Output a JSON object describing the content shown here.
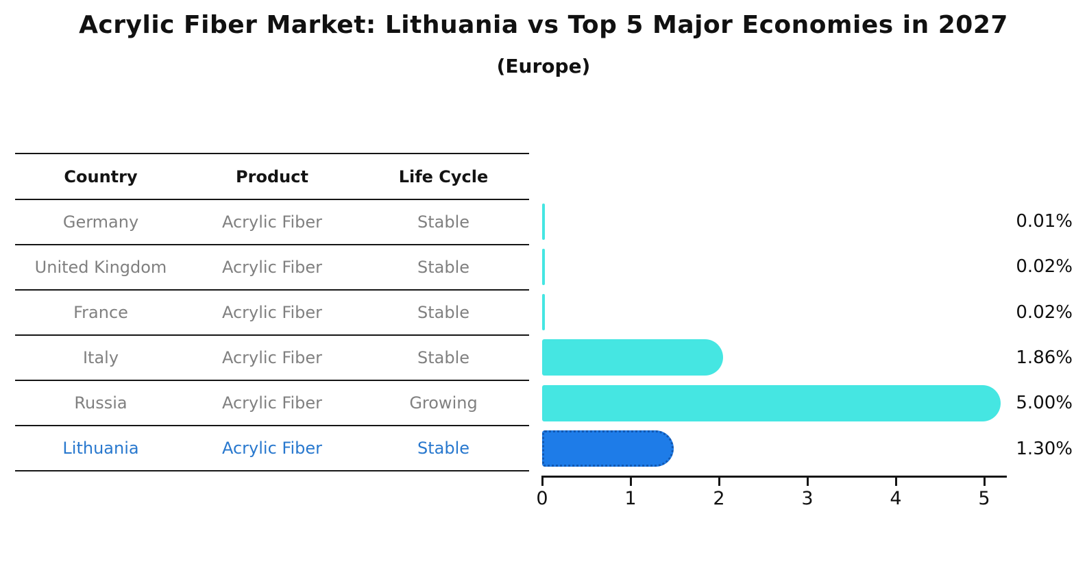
{
  "title": "Acrylic Fiber Market: Lithuania vs Top 5 Major Economies in 2027",
  "subtitle": "(Europe)",
  "table": {
    "headers": [
      "Country",
      "Product",
      "Life Cycle"
    ],
    "rows": [
      {
        "country": "Germany",
        "product": "Acrylic Fiber",
        "life_cycle": "Stable",
        "highlight": false
      },
      {
        "country": "United Kingdom",
        "product": "Acrylic Fiber",
        "life_cycle": "Stable",
        "highlight": false
      },
      {
        "country": "France",
        "product": "Acrylic Fiber",
        "life_cycle": "Stable",
        "highlight": false
      },
      {
        "country": "Italy",
        "product": "Acrylic Fiber",
        "life_cycle": "Stable",
        "highlight": false
      },
      {
        "country": "Russia",
        "product": "Acrylic Fiber",
        "life_cycle": "Growing",
        "highlight": false
      },
      {
        "country": "Lithuania",
        "product": "Acrylic Fiber",
        "life_cycle": "Stable",
        "highlight": true
      }
    ]
  },
  "chart_data": {
    "type": "bar",
    "orientation": "horizontal",
    "title": "Acrylic Fiber Market: Lithuania vs Top 5 Major Economies in 2027",
    "subtitle": "(Europe)",
    "categories": [
      "Germany",
      "United Kingdom",
      "France",
      "Italy",
      "Russia",
      "Lithuania"
    ],
    "values": [
      0.01,
      0.02,
      0.02,
      1.86,
      5.0,
      1.3
    ],
    "value_labels": [
      "0.01%",
      "0.02%",
      "0.02%",
      "1.86%",
      "5.00%",
      "1.30%"
    ],
    "x_ticks": [
      "0",
      "1",
      "2",
      "3",
      "4",
      "5"
    ],
    "xlim": [
      0,
      5.25
    ],
    "grid": false,
    "legend": "none",
    "highlight_index": 5,
    "colors": {
      "default_bar": "#45E6E2",
      "highlight_bar": "#1E7CE8",
      "highlight_border": "#1157B0",
      "highlight_text": "#2878CE",
      "row_text": "#808080",
      "axis": "#151515",
      "label_text": "#0f0f0f"
    }
  }
}
